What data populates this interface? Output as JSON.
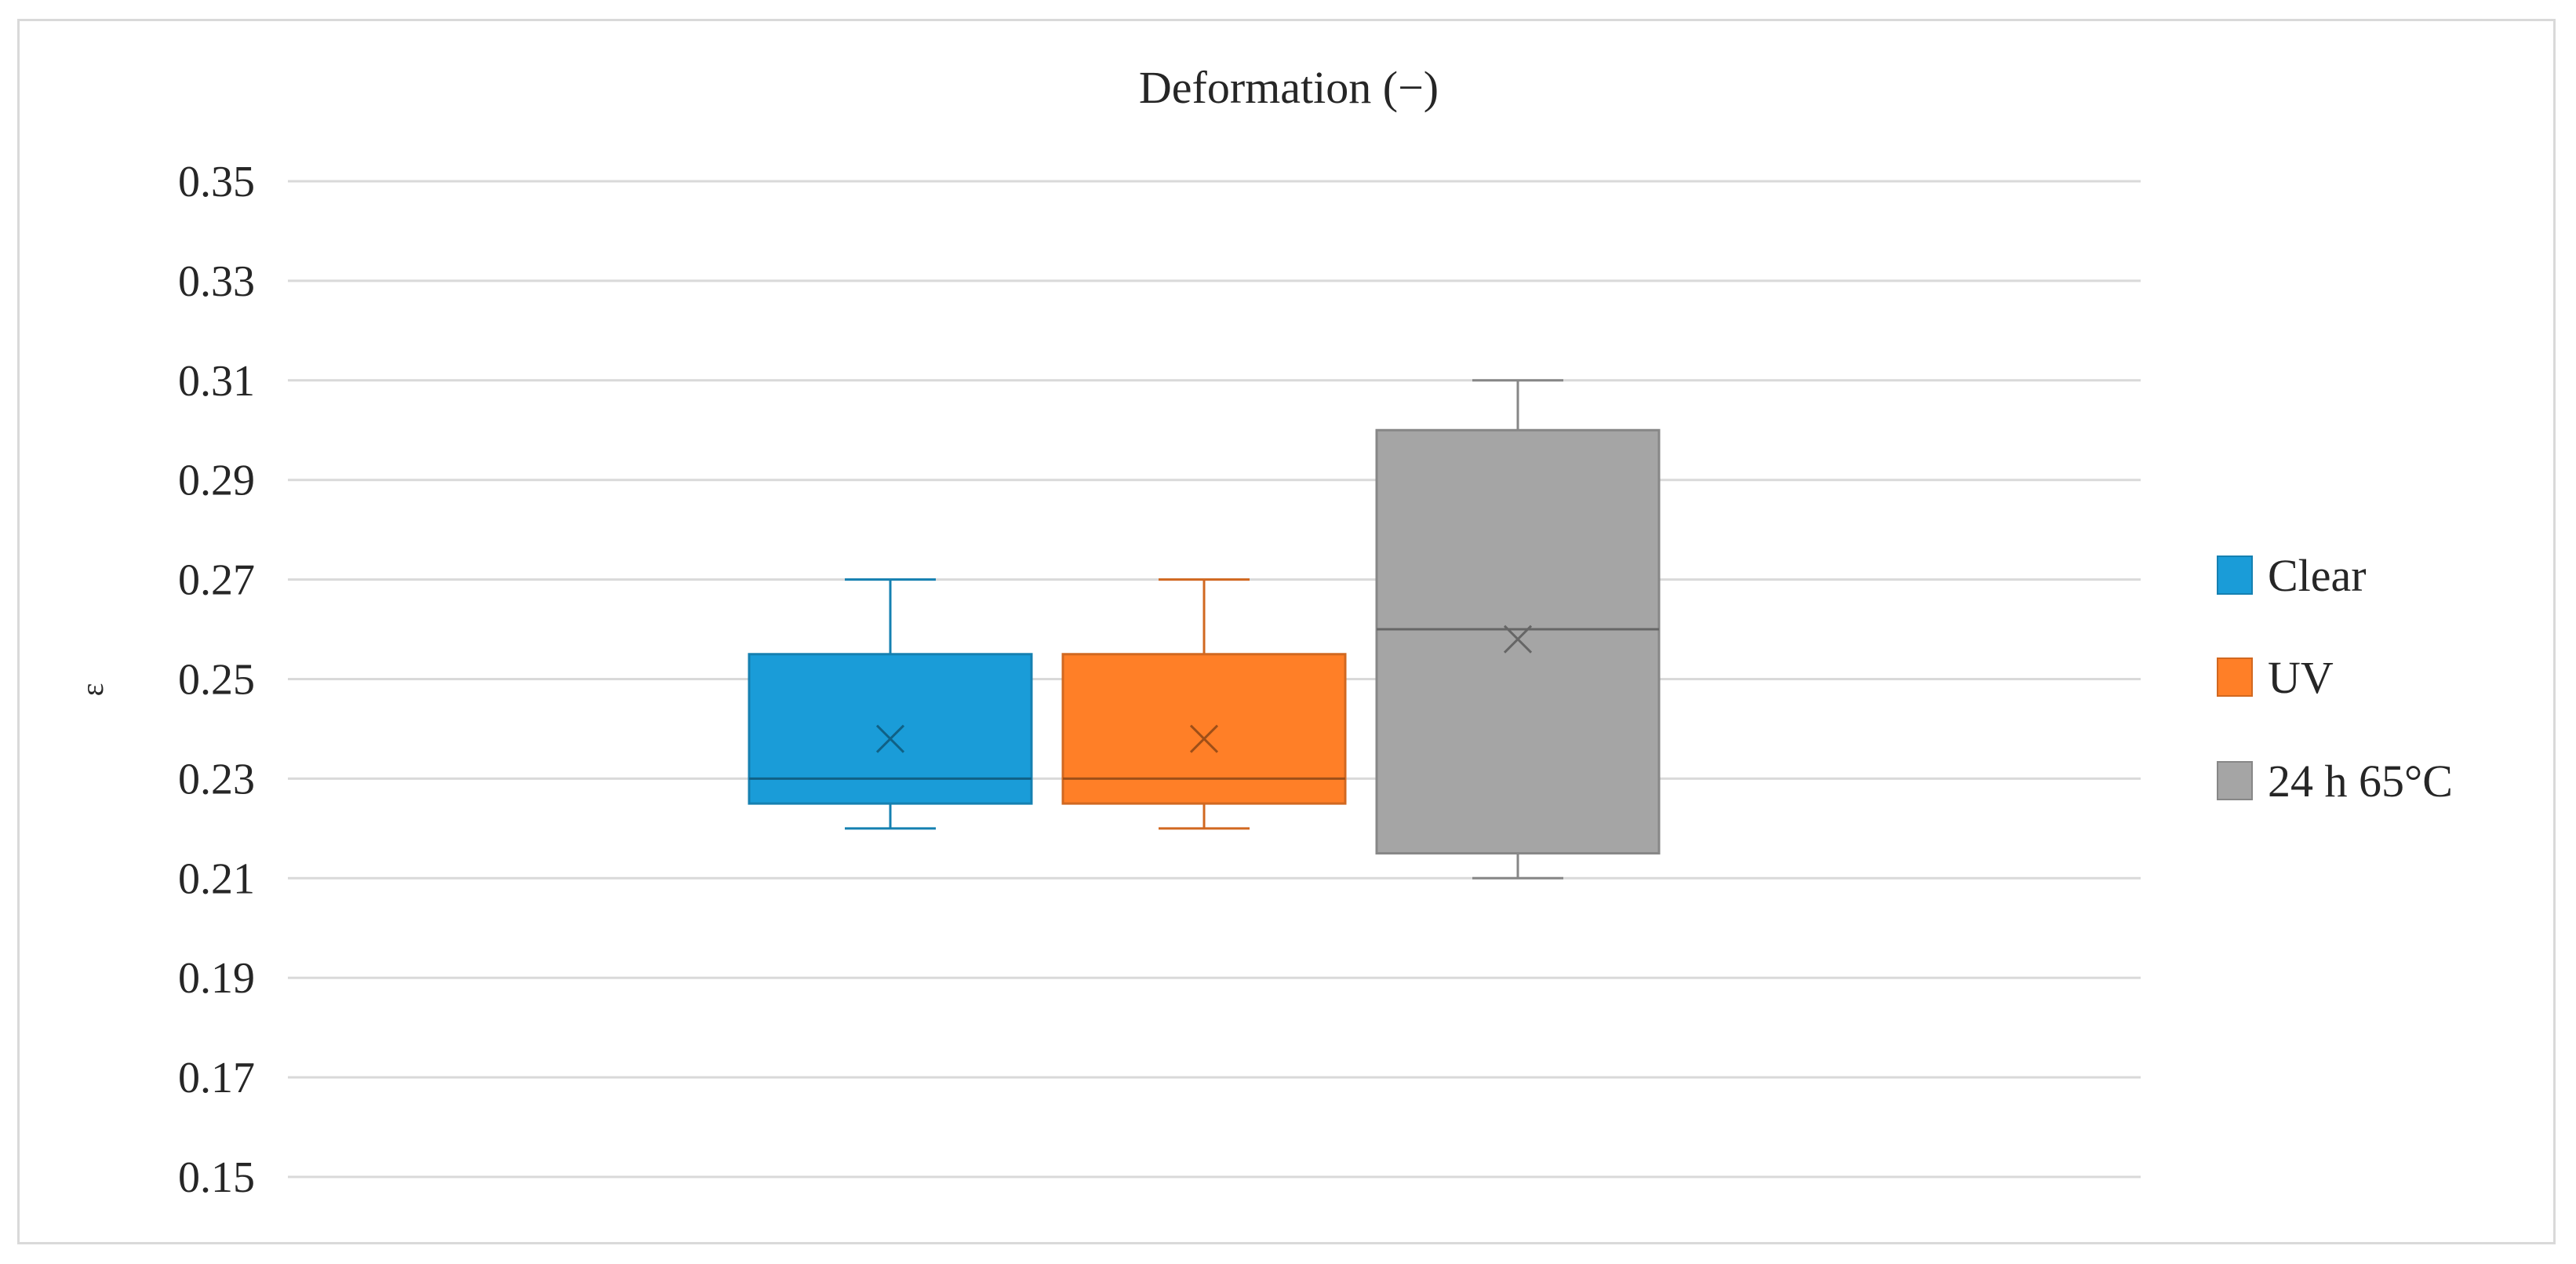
{
  "chart_data": {
    "type": "box",
    "title": "Deformation (−)",
    "xlabel": "",
    "ylabel": "ε",
    "ylim": [
      0.15,
      0.35
    ],
    "yticks": [
      "0.15",
      "0.17",
      "0.19",
      "0.21",
      "0.23",
      "0.25",
      "0.27",
      "0.29",
      "0.31",
      "0.33",
      "0.35"
    ],
    "grid": true,
    "legend_position": "right",
    "series": [
      {
        "name": "Clear",
        "color": "#1a9cd8",
        "min": 0.22,
        "q1": 0.225,
        "median": 0.23,
        "q3": 0.255,
        "max": 0.27,
        "mean": 0.238
      },
      {
        "name": "UV",
        "color": "#ff7f27",
        "min": 0.22,
        "q1": 0.225,
        "median": 0.23,
        "q3": 0.255,
        "max": 0.27,
        "mean": 0.238
      },
      {
        "name": "24 h 65°C",
        "color": "#a5a5a5",
        "min": 0.21,
        "q1": 0.215,
        "median": 0.26,
        "q3": 0.3,
        "max": 0.31,
        "mean": 0.258
      }
    ]
  }
}
